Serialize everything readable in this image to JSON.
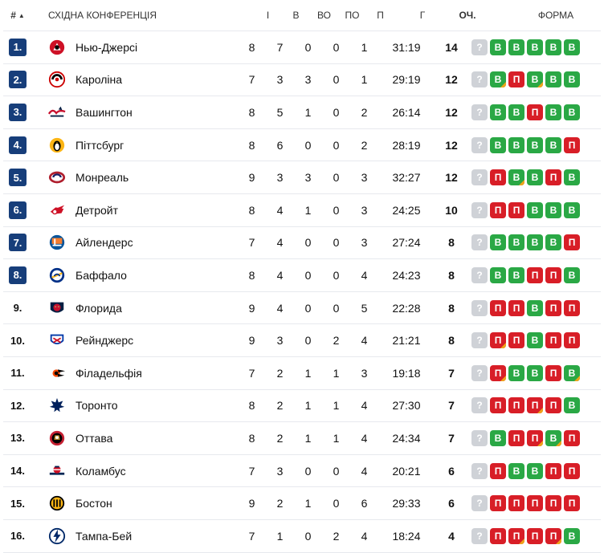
{
  "header": {
    "rank": "#",
    "sort_icon": "sort-up-icon",
    "team": "СХІДНА КОНФЕРЕНЦІЯ",
    "gp": "І",
    "w": "В",
    "otw": "ВО",
    "otl": "ПО",
    "l": "П",
    "goals": "Г",
    "pts": "ОЧ.",
    "form": "ФОРМА"
  },
  "colors": {
    "win": "#2aa845",
    "loss": "#d81e27",
    "unknown": "#cfd2d7",
    "overtime_marker": "#f0a41a",
    "rank_badge": "#173e7a"
  },
  "rows": [
    {
      "rank": "1.",
      "badge": true,
      "team": "Нью-Джерсі",
      "logo": "devils",
      "gp": "8",
      "w": "7",
      "otw": "0",
      "otl": "0",
      "l": "1",
      "goals": "31:19",
      "pts": "14",
      "form": [
        {
          "t": "?",
          "r": "U",
          "ot": false
        },
        {
          "t": "В",
          "r": "W",
          "ot": false
        },
        {
          "t": "В",
          "r": "W",
          "ot": false
        },
        {
          "t": "В",
          "r": "W",
          "ot": false
        },
        {
          "t": "В",
          "r": "W",
          "ot": false
        },
        {
          "t": "В",
          "r": "W",
          "ot": false
        }
      ]
    },
    {
      "rank": "2.",
      "badge": true,
      "team": "Кароліна",
      "logo": "hurricanes",
      "gp": "7",
      "w": "3",
      "otw": "3",
      "otl": "0",
      "l": "1",
      "goals": "29:19",
      "pts": "12",
      "form": [
        {
          "t": "?",
          "r": "U",
          "ot": false
        },
        {
          "t": "В",
          "r": "W",
          "ot": true
        },
        {
          "t": "П",
          "r": "L",
          "ot": false
        },
        {
          "t": "В",
          "r": "W",
          "ot": true
        },
        {
          "t": "В",
          "r": "W",
          "ot": false
        },
        {
          "t": "В",
          "r": "W",
          "ot": false
        }
      ]
    },
    {
      "rank": "3.",
      "badge": true,
      "team": "Вашингтон",
      "logo": "capitals",
      "gp": "8",
      "w": "5",
      "otw": "1",
      "otl": "0",
      "l": "2",
      "goals": "26:14",
      "pts": "12",
      "form": [
        {
          "t": "?",
          "r": "U",
          "ot": false
        },
        {
          "t": "В",
          "r": "W",
          "ot": false
        },
        {
          "t": "В",
          "r": "W",
          "ot": false
        },
        {
          "t": "П",
          "r": "L",
          "ot": false
        },
        {
          "t": "В",
          "r": "W",
          "ot": false
        },
        {
          "t": "В",
          "r": "W",
          "ot": false
        }
      ]
    },
    {
      "rank": "4.",
      "badge": true,
      "team": "Піттсбург",
      "logo": "penguins",
      "gp": "8",
      "w": "6",
      "otw": "0",
      "otl": "0",
      "l": "2",
      "goals": "28:19",
      "pts": "12",
      "form": [
        {
          "t": "?",
          "r": "U",
          "ot": false
        },
        {
          "t": "В",
          "r": "W",
          "ot": false
        },
        {
          "t": "В",
          "r": "W",
          "ot": false
        },
        {
          "t": "В",
          "r": "W",
          "ot": false
        },
        {
          "t": "В",
          "r": "W",
          "ot": false
        },
        {
          "t": "П",
          "r": "L",
          "ot": false
        }
      ]
    },
    {
      "rank": "5.",
      "badge": true,
      "team": "Монреаль",
      "logo": "canadiens",
      "gp": "9",
      "w": "3",
      "otw": "3",
      "otl": "0",
      "l": "3",
      "goals": "32:27",
      "pts": "12",
      "form": [
        {
          "t": "?",
          "r": "U",
          "ot": false
        },
        {
          "t": "П",
          "r": "L",
          "ot": false
        },
        {
          "t": "В",
          "r": "W",
          "ot": true
        },
        {
          "t": "В",
          "r": "W",
          "ot": false
        },
        {
          "t": "П",
          "r": "L",
          "ot": false
        },
        {
          "t": "В",
          "r": "W",
          "ot": false
        }
      ]
    },
    {
      "rank": "6.",
      "badge": true,
      "team": "Детройт",
      "logo": "redwings",
      "gp": "8",
      "w": "4",
      "otw": "1",
      "otl": "0",
      "l": "3",
      "goals": "24:25",
      "pts": "10",
      "form": [
        {
          "t": "?",
          "r": "U",
          "ot": false
        },
        {
          "t": "П",
          "r": "L",
          "ot": false
        },
        {
          "t": "П",
          "r": "L",
          "ot": false
        },
        {
          "t": "В",
          "r": "W",
          "ot": false
        },
        {
          "t": "В",
          "r": "W",
          "ot": false
        },
        {
          "t": "В",
          "r": "W",
          "ot": false
        }
      ]
    },
    {
      "rank": "7.",
      "badge": true,
      "team": "Айлендерс",
      "logo": "islanders",
      "gp": "7",
      "w": "4",
      "otw": "0",
      "otl": "0",
      "l": "3",
      "goals": "27:24",
      "pts": "8",
      "form": [
        {
          "t": "?",
          "r": "U",
          "ot": false
        },
        {
          "t": "В",
          "r": "W",
          "ot": false
        },
        {
          "t": "В",
          "r": "W",
          "ot": false
        },
        {
          "t": "В",
          "r": "W",
          "ot": false
        },
        {
          "t": "В",
          "r": "W",
          "ot": false
        },
        {
          "t": "П",
          "r": "L",
          "ot": false
        }
      ]
    },
    {
      "rank": "8.",
      "badge": true,
      "team": "Баффало",
      "logo": "sabres",
      "gp": "8",
      "w": "4",
      "otw": "0",
      "otl": "0",
      "l": "4",
      "goals": "24:23",
      "pts": "8",
      "form": [
        {
          "t": "?",
          "r": "U",
          "ot": false
        },
        {
          "t": "В",
          "r": "W",
          "ot": false
        },
        {
          "t": "В",
          "r": "W",
          "ot": false
        },
        {
          "t": "П",
          "r": "L",
          "ot": false
        },
        {
          "t": "П",
          "r": "L",
          "ot": false
        },
        {
          "t": "В",
          "r": "W",
          "ot": false
        }
      ]
    },
    {
      "rank": "9.",
      "badge": false,
      "team": "Флорида",
      "logo": "panthers",
      "gp": "9",
      "w": "4",
      "otw": "0",
      "otl": "0",
      "l": "5",
      "goals": "22:28",
      "pts": "8",
      "form": [
        {
          "t": "?",
          "r": "U",
          "ot": false
        },
        {
          "t": "П",
          "r": "L",
          "ot": false
        },
        {
          "t": "П",
          "r": "L",
          "ot": false
        },
        {
          "t": "В",
          "r": "W",
          "ot": false
        },
        {
          "t": "П",
          "r": "L",
          "ot": false
        },
        {
          "t": "П",
          "r": "L",
          "ot": false
        }
      ]
    },
    {
      "rank": "10.",
      "badge": false,
      "team": "Рейнджерс",
      "logo": "rangers",
      "gp": "9",
      "w": "3",
      "otw": "0",
      "otl": "2",
      "l": "4",
      "goals": "21:21",
      "pts": "8",
      "form": [
        {
          "t": "?",
          "r": "U",
          "ot": false
        },
        {
          "t": "П",
          "r": "L",
          "ot": true
        },
        {
          "t": "П",
          "r": "L",
          "ot": false
        },
        {
          "t": "В",
          "r": "W",
          "ot": false
        },
        {
          "t": "П",
          "r": "L",
          "ot": false
        },
        {
          "t": "П",
          "r": "L",
          "ot": false
        }
      ]
    },
    {
      "rank": "11.",
      "badge": false,
      "team": "Філадельфія",
      "logo": "flyers",
      "gp": "7",
      "w": "2",
      "otw": "1",
      "otl": "1",
      "l": "3",
      "goals": "19:18",
      "pts": "7",
      "form": [
        {
          "t": "?",
          "r": "U",
          "ot": false
        },
        {
          "t": "П",
          "r": "L",
          "ot": true
        },
        {
          "t": "В",
          "r": "W",
          "ot": false
        },
        {
          "t": "В",
          "r": "W",
          "ot": false
        },
        {
          "t": "П",
          "r": "L",
          "ot": false
        },
        {
          "t": "В",
          "r": "W",
          "ot": true
        }
      ]
    },
    {
      "rank": "12.",
      "badge": false,
      "team": "Торонто",
      "logo": "mapleleafs",
      "gp": "8",
      "w": "2",
      "otw": "1",
      "otl": "1",
      "l": "4",
      "goals": "27:30",
      "pts": "7",
      "form": [
        {
          "t": "?",
          "r": "U",
          "ot": false
        },
        {
          "t": "П",
          "r": "L",
          "ot": false
        },
        {
          "t": "П",
          "r": "L",
          "ot": false
        },
        {
          "t": "П",
          "r": "L",
          "ot": true
        },
        {
          "t": "П",
          "r": "L",
          "ot": false
        },
        {
          "t": "В",
          "r": "W",
          "ot": false
        }
      ]
    },
    {
      "rank": "13.",
      "badge": false,
      "team": "Оттава",
      "logo": "senators",
      "gp": "8",
      "w": "2",
      "otw": "1",
      "otl": "1",
      "l": "4",
      "goals": "24:34",
      "pts": "7",
      "form": [
        {
          "t": "?",
          "r": "U",
          "ot": false
        },
        {
          "t": "В",
          "r": "W",
          "ot": false
        },
        {
          "t": "П",
          "r": "L",
          "ot": false
        },
        {
          "t": "П",
          "r": "L",
          "ot": true
        },
        {
          "t": "В",
          "r": "W",
          "ot": true
        },
        {
          "t": "П",
          "r": "L",
          "ot": false
        }
      ]
    },
    {
      "rank": "14.",
      "badge": false,
      "team": "Коламбус",
      "logo": "bluejackets",
      "gp": "7",
      "w": "3",
      "otw": "0",
      "otl": "0",
      "l": "4",
      "goals": "20:21",
      "pts": "6",
      "form": [
        {
          "t": "?",
          "r": "U",
          "ot": false
        },
        {
          "t": "П",
          "r": "L",
          "ot": false
        },
        {
          "t": "В",
          "r": "W",
          "ot": false
        },
        {
          "t": "В",
          "r": "W",
          "ot": false
        },
        {
          "t": "П",
          "r": "L",
          "ot": false
        },
        {
          "t": "П",
          "r": "L",
          "ot": false
        }
      ]
    },
    {
      "rank": "15.",
      "badge": false,
      "team": "Бостон",
      "logo": "bruins",
      "gp": "9",
      "w": "2",
      "otw": "1",
      "otl": "0",
      "l": "6",
      "goals": "29:33",
      "pts": "6",
      "form": [
        {
          "t": "?",
          "r": "U",
          "ot": false
        },
        {
          "t": "П",
          "r": "L",
          "ot": false
        },
        {
          "t": "П",
          "r": "L",
          "ot": false
        },
        {
          "t": "П",
          "r": "L",
          "ot": false
        },
        {
          "t": "П",
          "r": "L",
          "ot": false
        },
        {
          "t": "П",
          "r": "L",
          "ot": false
        }
      ]
    },
    {
      "rank": "16.",
      "badge": false,
      "team": "Тампа-Бей",
      "logo": "lightning",
      "gp": "7",
      "w": "1",
      "otw": "0",
      "otl": "2",
      "l": "4",
      "goals": "18:24",
      "pts": "4",
      "form": [
        {
          "t": "?",
          "r": "U",
          "ot": false
        },
        {
          "t": "П",
          "r": "L",
          "ot": false
        },
        {
          "t": "П",
          "r": "L",
          "ot": true
        },
        {
          "t": "П",
          "r": "L",
          "ot": false
        },
        {
          "t": "П",
          "r": "L",
          "ot": true
        },
        {
          "t": "В",
          "r": "W",
          "ot": false
        }
      ]
    }
  ]
}
